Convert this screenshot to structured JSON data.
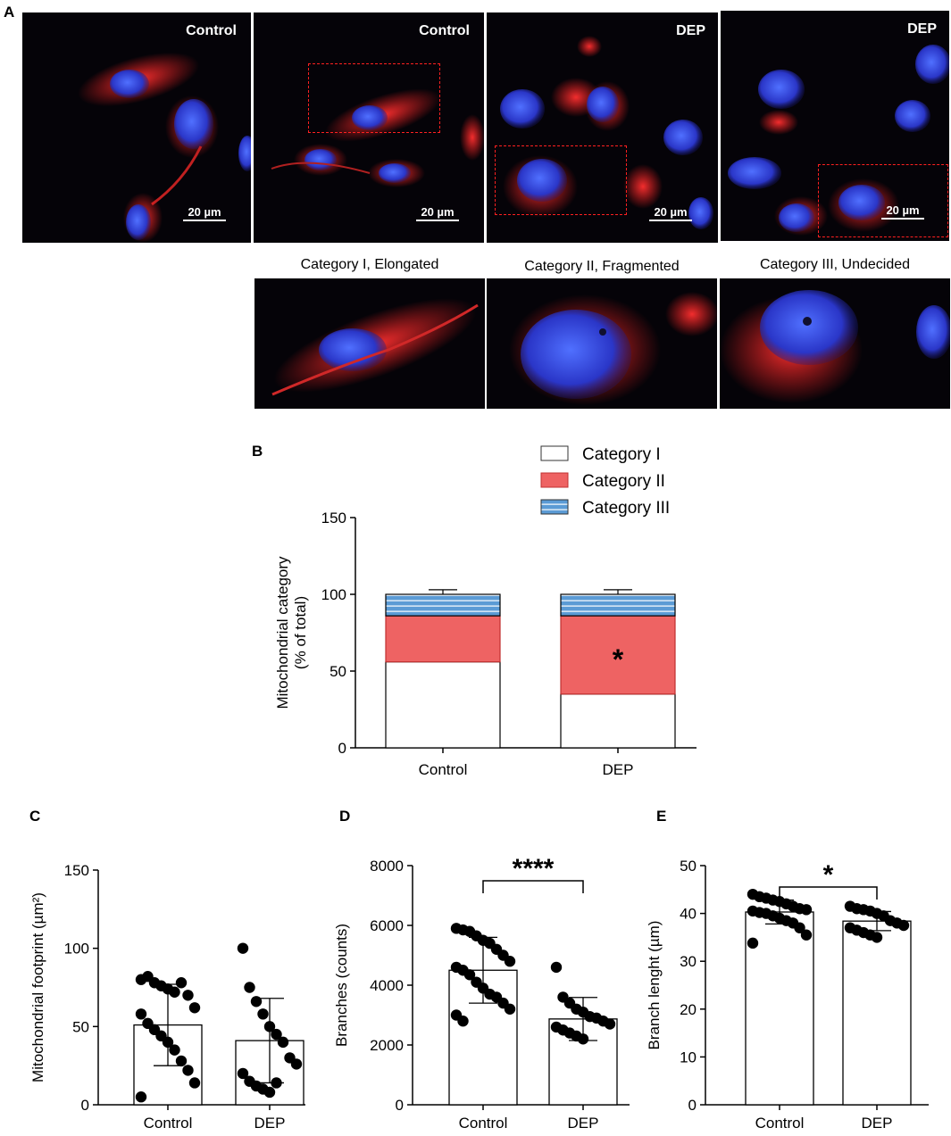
{
  "panels": {
    "a": "A",
    "b": "B",
    "c": "C",
    "d": "D",
    "e": "E"
  },
  "micrographs": [
    {
      "label": "Control",
      "scale": "20 µm"
    },
    {
      "label": "Control",
      "scale": "20 µm"
    },
    {
      "label": "DEP",
      "scale": "20 µm"
    },
    {
      "label": "DEP",
      "scale": "20 µm"
    }
  ],
  "zoom_titles": [
    "Category I, Elongated",
    "Category II, Fragmented",
    "Category III, Undecided"
  ],
  "colors": {
    "category_i": "#ffffff",
    "category_ii": "#ee6363",
    "category_iii": "#5b9bd5",
    "points": "#000000"
  },
  "chart_data": [
    {
      "id": "B",
      "type": "bar",
      "stacked": true,
      "categories": [
        "Control",
        "DEP"
      ],
      "series": [
        {
          "name": "Category I",
          "values": [
            56,
            35
          ],
          "error": [
            4,
            3
          ]
        },
        {
          "name": "Category II",
          "values": [
            30,
            51
          ],
          "error": [
            3,
            5
          ]
        },
        {
          "name": "Category III",
          "values": [
            14,
            14
          ],
          "error": [
            3,
            3
          ]
        }
      ],
      "ylabel": "Mitochondrial category",
      "ylabel2": "(% of total)",
      "ylim": [
        0,
        150
      ],
      "yticks": [
        "0",
        "50",
        "100",
        "150"
      ],
      "annotation": "*",
      "legend_position": "top-right"
    },
    {
      "id": "C",
      "type": "bar",
      "categories": [
        "Control",
        "DEP"
      ],
      "means": [
        51,
        41
      ],
      "sd": [
        26,
        27
      ],
      "points": [
        [
          80,
          82,
          78,
          76,
          74,
          72,
          78,
          70,
          62,
          58,
          52,
          48,
          44,
          40,
          35,
          28,
          22,
          14,
          5
        ],
        [
          100,
          75,
          66,
          58,
          50,
          45,
          40,
          30,
          26,
          20,
          15,
          12,
          10,
          8,
          14
        ]
      ],
      "ylabel": "Mitochondrial footprint (µm²)",
      "ylim": [
        0,
        150
      ],
      "yticks": [
        "0",
        "50",
        "100",
        "150"
      ]
    },
    {
      "id": "D",
      "type": "bar",
      "categories": [
        "Control",
        "DEP"
      ],
      "means": [
        4500,
        2870
      ],
      "sd": [
        1100,
        720
      ],
      "points": [
        [
          5900,
          5850,
          5800,
          5650,
          5500,
          5400,
          5200,
          5000,
          4800,
          4600,
          4500,
          4350,
          4100,
          3900,
          3700,
          3600,
          3400,
          3200,
          3000,
          2800
        ],
        [
          4600,
          3600,
          3400,
          3200,
          3100,
          2950,
          2900,
          2800,
          2700,
          2600,
          2500,
          2400,
          2300,
          2200
        ]
      ],
      "ylabel": "Branches (counts)",
      "ylim": [
        0,
        8000
      ],
      "yticks": [
        "0",
        "2000",
        "4000",
        "6000",
        "8000"
      ],
      "annotation": "****"
    },
    {
      "id": "E",
      "type": "bar",
      "categories": [
        "Control",
        "DEP"
      ],
      "means": [
        40.3,
        38.4
      ],
      "sd": [
        2.5,
        2.0
      ],
      "points": [
        [
          44.0,
          43.5,
          43.2,
          42.8,
          42.5,
          42.0,
          41.5,
          41.0,
          40.8,
          40.5,
          40.2,
          40.0,
          39.5,
          39.0,
          38.5,
          38.0,
          37.0,
          35.5,
          33.8
        ],
        [
          41.5,
          41.0,
          40.8,
          40.5,
          40.0,
          39.5,
          38.5,
          38.0,
          37.5,
          37.0,
          36.5,
          36.0,
          35.5,
          35.0
        ]
      ],
      "ylabel": "Branch lenght (µm)",
      "ylim": [
        0,
        50
      ],
      "yticks": [
        "0",
        "10",
        "20",
        "30",
        "40",
        "50"
      ],
      "annotation": "*"
    }
  ]
}
